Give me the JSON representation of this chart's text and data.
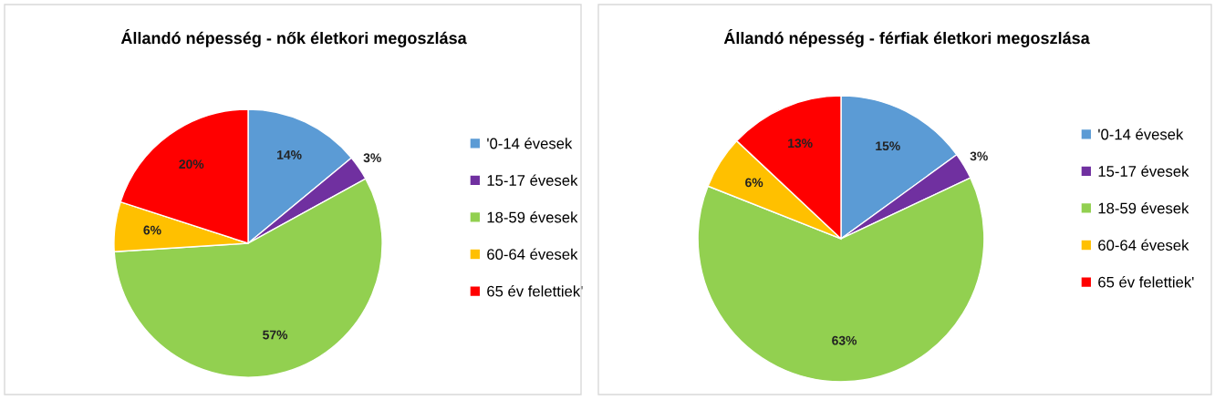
{
  "chart_data": [
    {
      "type": "pie",
      "title": "Állandó népesség - nők életkori megoszlása",
      "categories": [
        "'0-14 évesek",
        "15-17 évesek",
        "18-59 évesek",
        "60-64 évesek",
        "65 év felettiek'"
      ],
      "values": [
        14,
        3,
        57,
        6,
        20
      ],
      "colors": [
        "#5b9bd5",
        "#7030a0",
        "#92d050",
        "#ffc000",
        "#ff0000"
      ],
      "value_labels": [
        "14%",
        "3%",
        "57%",
        "6%",
        "20%"
      ],
      "legend": "right"
    },
    {
      "type": "pie",
      "title": "Állandó népesség - férfiak életkori megoszlása",
      "categories": [
        "'0-14 évesek",
        "15-17 évesek",
        "18-59 évesek",
        "60-64 évesek",
        "65 év felettiek'"
      ],
      "values": [
        15,
        3,
        63,
        6,
        13
      ],
      "colors": [
        "#5b9bd5",
        "#7030a0",
        "#92d050",
        "#ffc000",
        "#ff0000"
      ],
      "value_labels": [
        "15%",
        "3%",
        "63%",
        "6%",
        "13%"
      ],
      "legend": "right"
    }
  ]
}
